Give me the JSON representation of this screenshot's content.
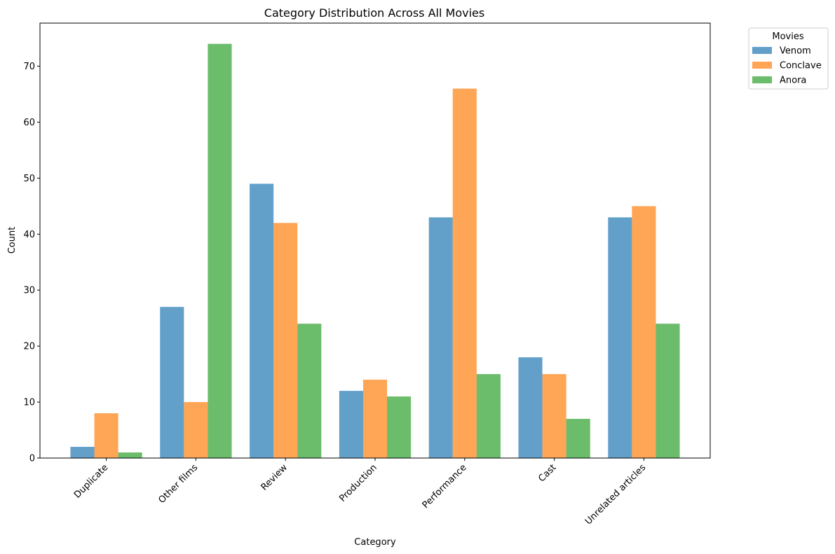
{
  "chart_data": {
    "type": "bar",
    "title": "Category Distribution Across All Movies",
    "xlabel": "Category",
    "ylabel": "Count",
    "ylim": [
      0,
      77.7
    ],
    "yticks": [
      0,
      10,
      20,
      30,
      40,
      50,
      60,
      70
    ],
    "grid": false,
    "legend_title": "Movies",
    "legend_position": "outside-top-right",
    "categories": [
      "Duplicate",
      "Other films",
      "Review",
      "Production",
      "Performance",
      "Cast",
      "Unrelated articles"
    ],
    "series": [
      {
        "name": "Venom",
        "color": "#1f77b4",
        "values": [
          2,
          27,
          49,
          12,
          43,
          18,
          43
        ]
      },
      {
        "name": "Conclave",
        "color": "#ff7f0e",
        "values": [
          8,
          10,
          42,
          14,
          66,
          15,
          45
        ]
      },
      {
        "name": "Anora",
        "color": "#2ca02c",
        "values": [
          1,
          74,
          24,
          11,
          15,
          7,
          24
        ]
      }
    ]
  }
}
